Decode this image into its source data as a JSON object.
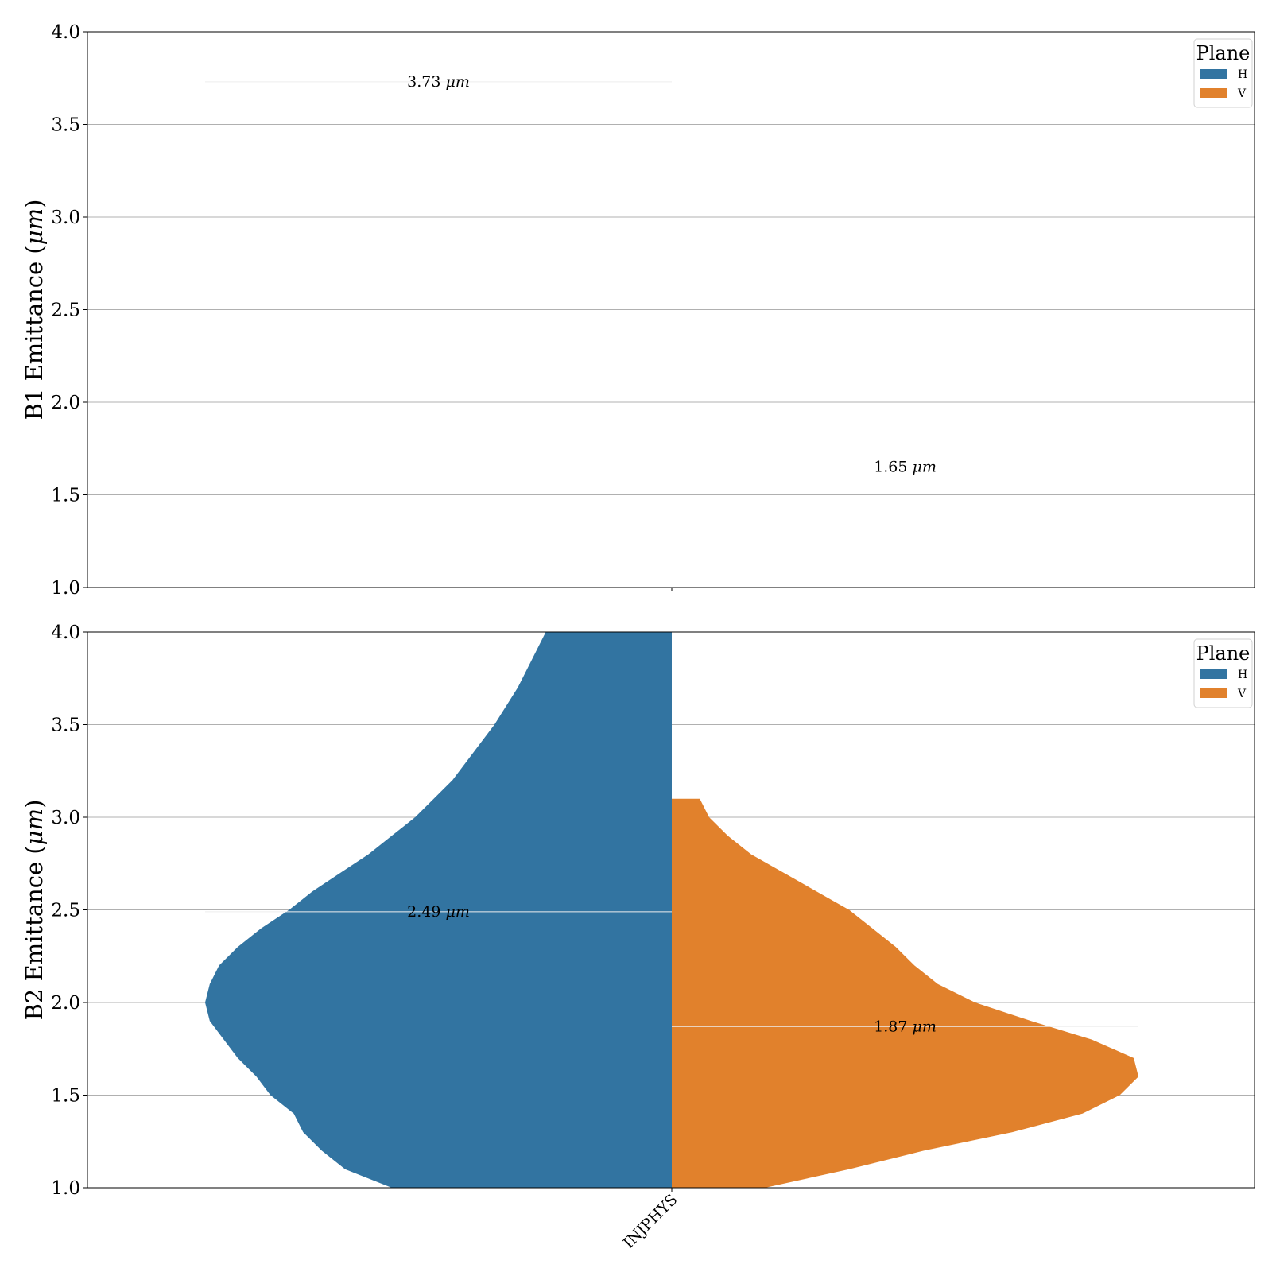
{
  "colors": {
    "H": "#3274a1",
    "V": "#e1812c",
    "grid": "#b0b0b0",
    "axis": "#000000"
  },
  "chart_data": [
    {
      "type": "violin",
      "ylabel_prefix": "B1 Emittance (",
      "ylabel_unit": "μm",
      "ylabel_suffix": ")",
      "ylim": [
        1.0,
        4.0
      ],
      "yticks": [
        "1.0",
        "1.5",
        "2.0",
        "2.5",
        "3.0",
        "3.5",
        "4.0"
      ],
      "grid": "y",
      "categories": [
        ""
      ],
      "legend": {
        "title": "Plane",
        "placement": "top-right",
        "entries": [
          "H",
          "V"
        ]
      },
      "series": [
        {
          "name": "H",
          "median": 3.73,
          "label_value": "3.73",
          "label_unit": "μm",
          "profile": []
        },
        {
          "name": "V",
          "median": 1.65,
          "label_value": "1.65",
          "label_unit": "μm",
          "profile": []
        }
      ]
    },
    {
      "type": "violin",
      "ylabel_prefix": "B2 Emittance (",
      "ylabel_unit": "μm",
      "ylabel_suffix": ")",
      "ylim": [
        1.0,
        4.0
      ],
      "yticks": [
        "1.0",
        "1.5",
        "2.0",
        "2.5",
        "3.0",
        "3.5",
        "4.0"
      ],
      "grid": "y",
      "categories": [
        "INJPHYS"
      ],
      "legend": {
        "title": "Plane",
        "placement": "top-right",
        "entries": [
          "H",
          "V"
        ]
      },
      "series": [
        {
          "name": "H",
          "median": 2.49,
          "label_value": "2.49",
          "label_unit": "μm",
          "profile": [
            [
              1.0,
              0.6
            ],
            [
              1.1,
              0.7
            ],
            [
              1.2,
              0.75
            ],
            [
              1.3,
              0.79
            ],
            [
              1.4,
              0.81
            ],
            [
              1.5,
              0.86
            ],
            [
              1.6,
              0.89
            ],
            [
              1.7,
              0.93
            ],
            [
              1.8,
              0.96
            ],
            [
              1.9,
              0.99
            ],
            [
              2.0,
              1.0
            ],
            [
              2.1,
              0.99
            ],
            [
              2.2,
              0.97
            ],
            [
              2.3,
              0.93
            ],
            [
              2.4,
              0.88
            ],
            [
              2.5,
              0.82
            ],
            [
              2.6,
              0.77
            ],
            [
              2.7,
              0.71
            ],
            [
              2.8,
              0.65
            ],
            [
              2.9,
              0.6
            ],
            [
              3.0,
              0.55
            ],
            [
              3.2,
              0.47
            ],
            [
              3.4,
              0.41
            ],
            [
              3.5,
              0.38
            ],
            [
              3.7,
              0.33
            ],
            [
              3.85,
              0.3
            ],
            [
              4.0,
              0.27
            ]
          ]
        },
        {
          "name": "V",
          "median": 1.87,
          "label_value": "1.87",
          "label_unit": "μm",
          "profile": [
            [
              1.0,
              0.2
            ],
            [
              1.1,
              0.38
            ],
            [
              1.2,
              0.54
            ],
            [
              1.3,
              0.73
            ],
            [
              1.4,
              0.88
            ],
            [
              1.5,
              0.96
            ],
            [
              1.6,
              1.0
            ],
            [
              1.7,
              0.99
            ],
            [
              1.8,
              0.9
            ],
            [
              1.9,
              0.77
            ],
            [
              2.0,
              0.65
            ],
            [
              2.1,
              0.57
            ],
            [
              2.2,
              0.52
            ],
            [
              2.3,
              0.48
            ],
            [
              2.4,
              0.43
            ],
            [
              2.5,
              0.38
            ],
            [
              2.6,
              0.31
            ],
            [
              2.7,
              0.24
            ],
            [
              2.8,
              0.17
            ],
            [
              2.9,
              0.12
            ],
            [
              3.0,
              0.08
            ],
            [
              3.1,
              0.06
            ]
          ]
        }
      ]
    }
  ]
}
